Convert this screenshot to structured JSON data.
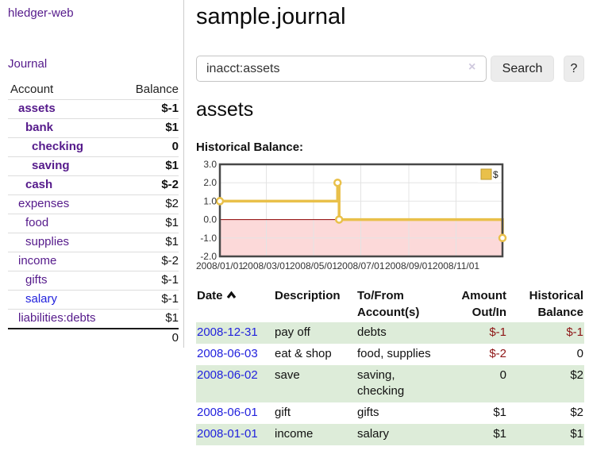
{
  "app": {
    "title": "hledger-web",
    "nav_journal": "Journal"
  },
  "sidebar": {
    "headers": {
      "account": "Account",
      "balance": "Balance"
    },
    "rows": [
      {
        "name": "assets",
        "level": 1,
        "bold": true,
        "balance": "$-1",
        "neg": "strong"
      },
      {
        "name": "bank",
        "level": 2,
        "bold": true,
        "balance": "$1"
      },
      {
        "name": "checking",
        "level": 3,
        "bold": true,
        "balance": "0"
      },
      {
        "name": "saving",
        "level": 3,
        "bold": true,
        "balance": "$1"
      },
      {
        "name": "cash",
        "level": 2,
        "bold": true,
        "balance": "$-2",
        "neg": "strong"
      },
      {
        "name": "expenses",
        "level": 1,
        "bold": false,
        "balance": "$2"
      },
      {
        "name": "food",
        "level": 2,
        "bold": false,
        "balance": "$1"
      },
      {
        "name": "supplies",
        "level": 2,
        "bold": false,
        "balance": "$1"
      },
      {
        "name": "income",
        "level": 1,
        "bold": false,
        "balance": "$-2",
        "neg": "muted"
      },
      {
        "name": "gifts",
        "level": 2,
        "bold": false,
        "balance": "$-1",
        "neg": "muted"
      },
      {
        "name": "salary",
        "level": 2,
        "bold": false,
        "balance": "$-1",
        "neg": "muted",
        "link_style": "unvisited"
      },
      {
        "name": "liabilities:debts",
        "level": 1,
        "bold": false,
        "balance": "$1"
      }
    ],
    "total": "0"
  },
  "header": {
    "title": "sample.journal"
  },
  "search": {
    "value": "inacct:assets",
    "clear_icon": "×",
    "button": "Search",
    "help_button": "?"
  },
  "account_page": {
    "heading": "assets",
    "chart_title": "Historical Balance:"
  },
  "chart_data": {
    "type": "line",
    "step": true,
    "title": "Historical Balance",
    "series": [
      {
        "name": "$",
        "points": [
          [
            "2008-01-01",
            1
          ],
          [
            "2008-06-01",
            2
          ],
          [
            "2008-06-03",
            0
          ],
          [
            "2008-12-31",
            -1
          ]
        ]
      }
    ],
    "xlim": [
      "2008-01-01",
      "2008-12-31"
    ],
    "ylim": [
      -2,
      3
    ],
    "y_ticks": [
      "3.0",
      "2.0",
      "1.0",
      "0.0",
      "-1.0",
      "-2.0"
    ],
    "x_ticks": [
      {
        "label": "2008/01/01",
        "date": "2008-01-01"
      },
      {
        "label": "2008/03/01",
        "date": "2008-03-01"
      },
      {
        "label": "2008/05/01",
        "date": "2008-05-01"
      },
      {
        "label": "2008/07/01",
        "date": "2008-07-01"
      },
      {
        "label": "2008/09/01",
        "date": "2008-09-01"
      },
      {
        "label": "2008/11/01",
        "date": "2008-11-01"
      }
    ],
    "legend": {
      "label": "$",
      "position": "top-right"
    },
    "grid": true,
    "colors": {
      "line": "#e9c04a",
      "legend_border": "#bd9a30",
      "negative_fill": "#fcd9d9",
      "zero_line": "#8b0000",
      "grid": "#e4e4e4",
      "border": "#484848",
      "axis_text": "#333333"
    }
  },
  "register": {
    "headers": {
      "date": "Date",
      "sort_icon": "chevron-up",
      "description": "Description",
      "accounts": "To/From Account(s)",
      "amount": "Amount Out/In",
      "balance": "Historical Balance"
    },
    "rows": [
      {
        "date": "2008-12-31",
        "description": "pay off",
        "accounts": "debts",
        "amount": "$-1",
        "amount_negative": true,
        "balance": "$-1",
        "balance_negative": true,
        "shaded": true
      },
      {
        "date": "2008-06-03",
        "description": "eat & shop",
        "accounts": "food, supplies",
        "amount": "$-2",
        "amount_negative": true,
        "balance": "0",
        "balance_negative": false,
        "shaded": false
      },
      {
        "date": "2008-06-02",
        "description": "save",
        "accounts": "saving,\nchecking",
        "amount": "0",
        "amount_negative": false,
        "balance": "$2",
        "balance_negative": false,
        "shaded": true
      },
      {
        "date": "2008-06-01",
        "description": "gift",
        "accounts": "gifts",
        "amount": "$1",
        "amount_negative": false,
        "balance": "$2",
        "balance_negative": false,
        "shaded": false
      },
      {
        "date": "2008-01-01",
        "description": "income",
        "accounts": "salary",
        "amount": "$1",
        "amount_negative": false,
        "balance": "$1",
        "balance_negative": false,
        "shaded": true
      }
    ]
  }
}
